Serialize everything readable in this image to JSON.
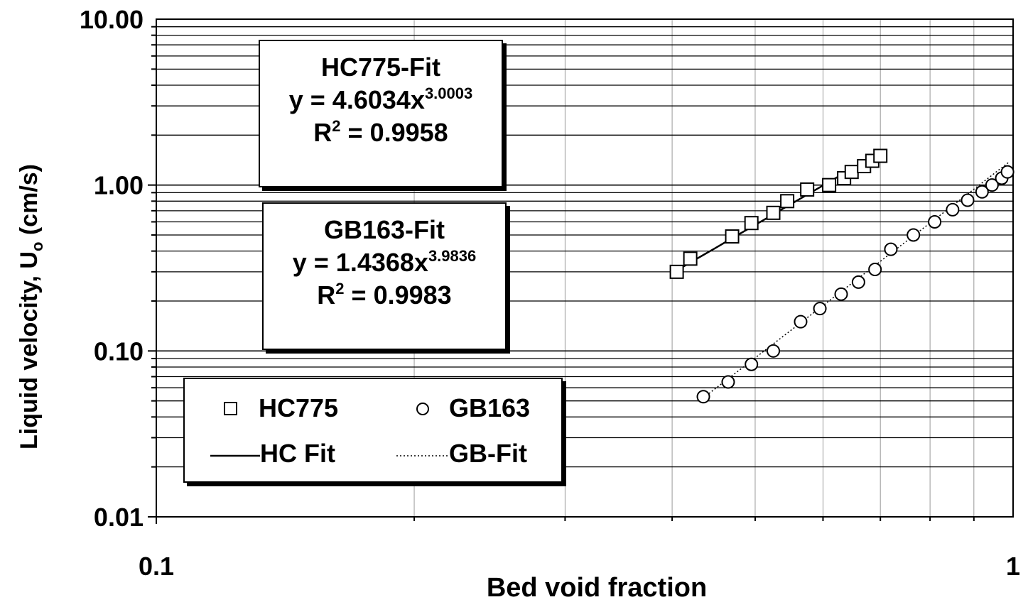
{
  "chart_data": {
    "type": "scatter",
    "xlabel": "Bed void fraction",
    "ylabel": "Liquid velocity, U",
    "ylabel_sub": "o",
    "ylabel_unit": " (cm/s)",
    "x_scale": "log",
    "y_scale": "log",
    "xlim": [
      0.1,
      1
    ],
    "ylim": [
      0.01,
      10
    ],
    "x_ticks": [
      "0.1",
      "1"
    ],
    "y_ticks": [
      "0.01",
      "0.10",
      "1.00",
      "10.00"
    ],
    "grid": true,
    "series": [
      {
        "name": "HC775",
        "marker": "square",
        "x": [
          0.405,
          0.42,
          0.47,
          0.495,
          0.525,
          0.545,
          0.575,
          0.61,
          0.635,
          0.648,
          0.67,
          0.685,
          0.7
        ],
        "y": [
          0.3,
          0.36,
          0.49,
          0.59,
          0.68,
          0.8,
          0.94,
          1.0,
          1.1,
          1.2,
          1.3,
          1.4,
          1.5
        ]
      },
      {
        "name": "GB163",
        "marker": "circle",
        "x": [
          0.435,
          0.465,
          0.495,
          0.525,
          0.565,
          0.595,
          0.63,
          0.66,
          0.69,
          0.72,
          0.765,
          0.81,
          0.85,
          0.885,
          0.92,
          0.945,
          0.97,
          0.985
        ],
        "y": [
          0.053,
          0.065,
          0.083,
          0.1,
          0.15,
          0.18,
          0.22,
          0.26,
          0.31,
          0.41,
          0.5,
          0.6,
          0.71,
          0.81,
          0.91,
          1.0,
          1.1,
          1.2
        ]
      },
      {
        "name": "HC Fit",
        "line": "solid",
        "coef": 4.6034,
        "exponent": 3.0003,
        "x_range": [
          0.405,
          0.7
        ]
      },
      {
        "name": "GB-Fit",
        "line": "dotted",
        "coef": 1.4368,
        "exponent": 3.9836,
        "x_range": [
          0.435,
          0.99
        ]
      }
    ],
    "annotations": [
      {
        "title": "HC775-Fit",
        "eq_prefix": "y = 4.6034x",
        "eq_exp": "3.0003",
        "r2_prefix": "R",
        "r2_exp": "2",
        "r2_suffix": " = 0.9958"
      },
      {
        "title": "GB163-Fit",
        "eq_prefix": "y = 1.4368x",
        "eq_exp": "3.9836",
        "r2_prefix": "R",
        "r2_exp": "2",
        "r2_suffix": " = 0.9983"
      }
    ],
    "legend": {
      "position": "lower-left",
      "entries": [
        "HC775",
        "GB163",
        "HC Fit",
        "GB-Fit"
      ]
    }
  }
}
